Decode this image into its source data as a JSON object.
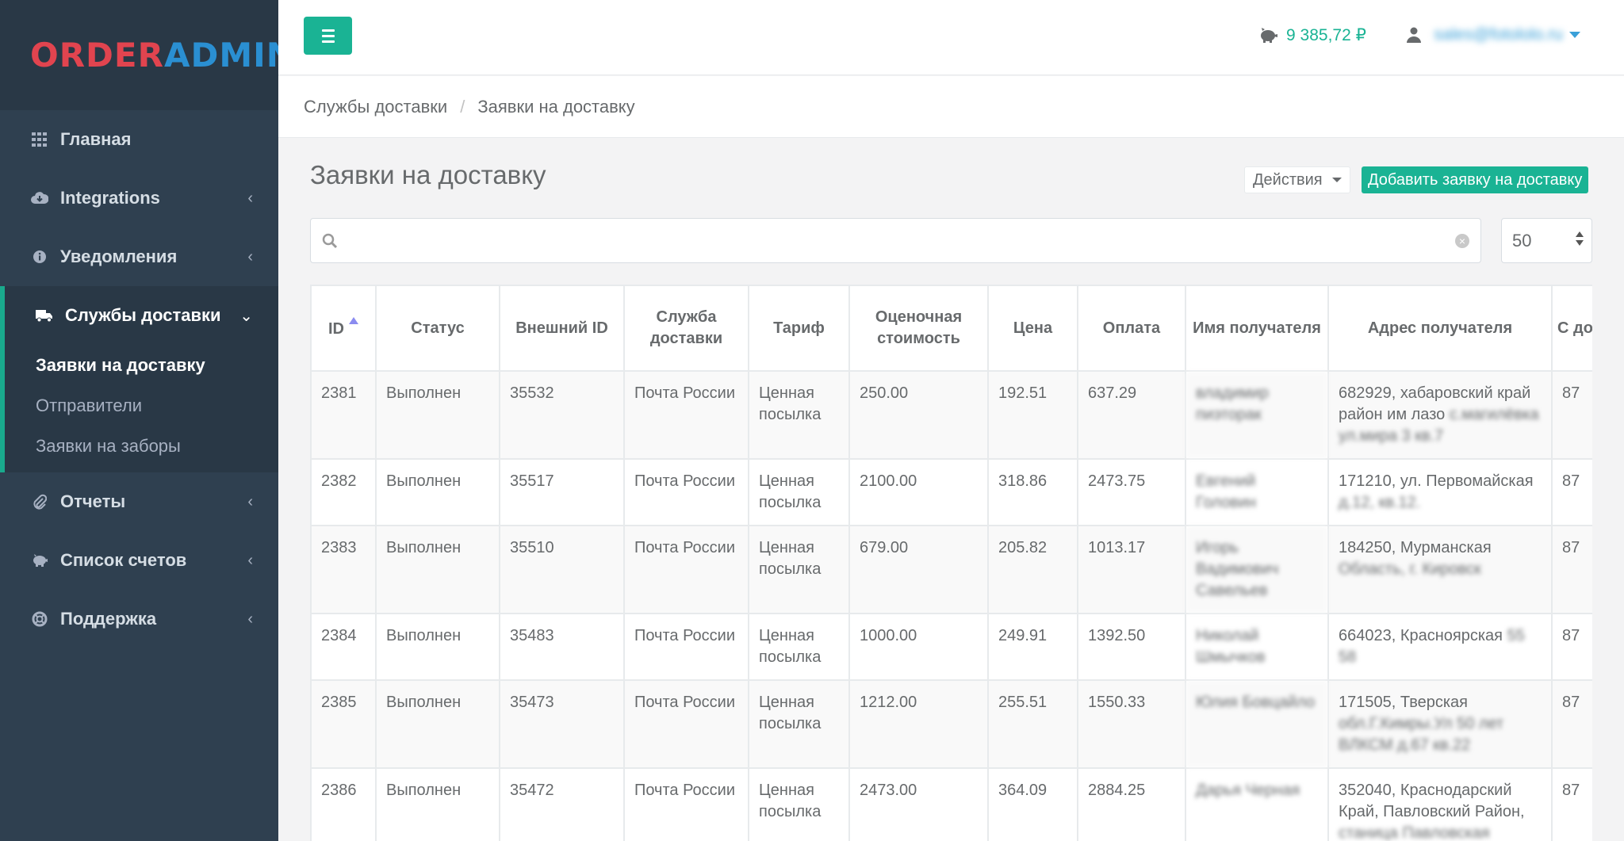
{
  "logo": {
    "part1": "ORDER",
    "part2": "ADMIN"
  },
  "sidebar": {
    "items": [
      {
        "label": "Главная",
        "icon": "grid-icon",
        "chevron": ""
      },
      {
        "label": "Integrations",
        "icon": "cloud-download-icon",
        "chevron": "‹"
      },
      {
        "label": "Уведомления",
        "icon": "info-icon",
        "chevron": "‹"
      },
      {
        "label": "Службы доставки",
        "icon": "truck-icon",
        "chevron": "⌄"
      },
      {
        "label": "Отчеты",
        "icon": "paperclip-icon",
        "chevron": "‹"
      },
      {
        "label": "Список счетов",
        "icon": "piggy-bank-icon",
        "chevron": "‹"
      },
      {
        "label": "Поддержка",
        "icon": "life-ring-icon",
        "chevron": "‹"
      }
    ],
    "subitems": [
      "Заявки на доставку",
      "Отправители",
      "Заявки на заборы"
    ]
  },
  "topbar": {
    "balance": "9 385,72 ₽",
    "email": "sales@fotololo.ru"
  },
  "breadcrumb": {
    "parent": "Службы доставки",
    "separator": "/",
    "current": "Заявки на доставку"
  },
  "page": {
    "title": "Заявки на доставку",
    "actions_label": "Действия",
    "add_label": "Добавить заявку на доставку",
    "search_placeholder": "",
    "per_page": "50"
  },
  "table": {
    "headers": [
      "ID",
      "Статус",
      "Внешний ID",
      "Служба доставки",
      "Тариф",
      "Оценочная стоимость",
      "Цена",
      "Оплата",
      "Имя получателя",
      "Адрес получателя",
      "С до"
    ],
    "rows": [
      {
        "id": "2381",
        "status": "Выполнен",
        "ext_id": "35532",
        "service": "Почта России",
        "tariff": "Ценная посылка",
        "estimate": "250.00",
        "price": "192.51",
        "payment": "637.29",
        "name": "владимир пиэторак",
        "address_visible": "682929, хабаровский край район им лазо",
        "address_hidden": "с.магилёвка ул.мира 3 кв.7",
        "extra": "87"
      },
      {
        "id": "2382",
        "status": "Выполнен",
        "ext_id": "35517",
        "service": "Почта России",
        "tariff": "Ценная посылка",
        "estimate": "2100.00",
        "price": "318.86",
        "payment": "2473.75",
        "name": "Евгений Головин",
        "address_visible": "171210, ул. Первомайская",
        "address_hidden": "д.12, кв.12.",
        "extra": "87"
      },
      {
        "id": "2383",
        "status": "Выполнен",
        "ext_id": "35510",
        "service": "Почта России",
        "tariff": "Ценная посылка",
        "estimate": "679.00",
        "price": "205.82",
        "payment": "1013.17",
        "name": "Игорь Вадимович Савельев",
        "address_visible": "184250, Мурманская",
        "address_hidden": "Область, г. Кировск",
        "extra": "87"
      },
      {
        "id": "2384",
        "status": "Выполнен",
        "ext_id": "35483",
        "service": "Почта России",
        "tariff": "Ценная посылка",
        "estimate": "1000.00",
        "price": "249.91",
        "payment": "1392.50",
        "name": "Николай Шмычков",
        "address_visible": "664023, Красноярская",
        "address_hidden": "55 58",
        "extra": "87"
      },
      {
        "id": "2385",
        "status": "Выполнен",
        "ext_id": "35473",
        "service": "Почта России",
        "tariff": "Ценная посылка",
        "estimate": "1212.00",
        "price": "255.51",
        "payment": "1550.33",
        "name": "Юлия Бовцайло",
        "address_visible": "171505, Тверская",
        "address_hidden": "обл.Г.Кимры.Ул 50 лет ВЛКСМ д.67 кв.22",
        "extra": "87"
      },
      {
        "id": "2386",
        "status": "Выполнен",
        "ext_id": "35472",
        "service": "Почта России",
        "tariff": "Ценная посылка",
        "estimate": "2473.00",
        "price": "364.09",
        "payment": "2884.25",
        "name": "Дарья Черная",
        "address_visible": "352040, Краснодарский Край, Павловский Район,",
        "address_hidden": "станица Павловская",
        "extra": "87"
      }
    ]
  },
  "colors": {
    "accent": "#1ab394",
    "sidebar": "#2f4050",
    "logo_red": "#e1444f",
    "logo_blue": "#2a8fd2"
  }
}
